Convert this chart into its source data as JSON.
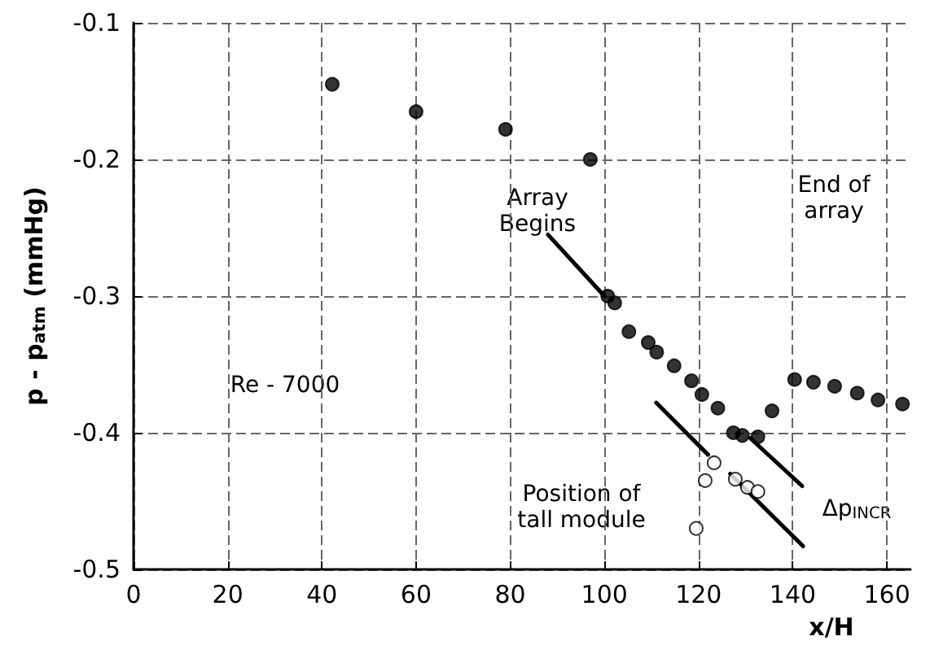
{
  "chart_data": {
    "type": "scatter",
    "xlabel": "x/H",
    "ylabel": "p - p$_{atm}$ (mmHg)",
    "xlim": [
      0,
      165
    ],
    "xticks": [
      0,
      20,
      40,
      60,
      80,
      100,
      120,
      140,
      160
    ],
    "ylim": [
      -0.5,
      -0.1
    ],
    "yticks": [
      -0.5,
      -0.4,
      -0.3,
      -0.2,
      -0.1
    ],
    "grid": true,
    "marker": "circle",
    "series": [
      {
        "color": "#000000",
        "x": [
          42.2,
          60,
          79,
          97,
          100.7,
          102.2,
          105.2,
          109.3,
          111.1,
          114.8,
          118.5,
          120.7,
          124.1,
          127.4,
          129.3,
          132.6,
          135.6,
          140.4,
          144.4,
          148.9,
          153.7,
          158.1,
          163.3
        ],
        "values": [
          -0.145,
          -0.165,
          -0.178,
          -0.2,
          -0.3,
          -0.305,
          -0.326,
          -0.334,
          -0.341,
          -0.351,
          -0.362,
          -0.372,
          -0.382,
          -0.4,
          -0.402,
          -0.403,
          -0.384,
          -0.361,
          -0.363,
          -0.366,
          -0.371,
          -0.376,
          -0.379
        ]
      },
      {
        "color": "#ffffff",
        "x": [
          119.5,
          121.4,
          123.3,
          127.8,
          130.4,
          132.6
        ],
        "values": [
          -0.47,
          -0.435,
          -0.422,
          -0.434,
          -0.44,
          -0.443
        ]
      },
      {
        "type": "line",
        "color": "#000000",
        "marker": "none",
        "x": [
          88,
          100
        ],
        "values": [
          -0.255,
          -0.3
        ]
      },
      {
        "type": "line",
        "color": "#000000",
        "marker": "none",
        "x": [
          111,
          122
        ],
        "values": [
          -0.378,
          -0.416
        ]
      },
      {
        "type": "line",
        "color": "#000000",
        "marker": "none",
        "x": [
          131,
          142
        ],
        "values": [
          -0.404,
          -0.439
        ]
      },
      {
        "type": "line",
        "color": "#000000",
        "marker": "none",
        "x": [
          126.7,
          142.2
        ],
        "values": [
          -0.43,
          -0.483
        ]
      }
    ],
    "annotations": [
      "Array\nBegins",
      "End of\narray",
      "Re - 7000",
      "Position of\ntall module",
      "Δp$_{INCR}$"
    ]
  }
}
